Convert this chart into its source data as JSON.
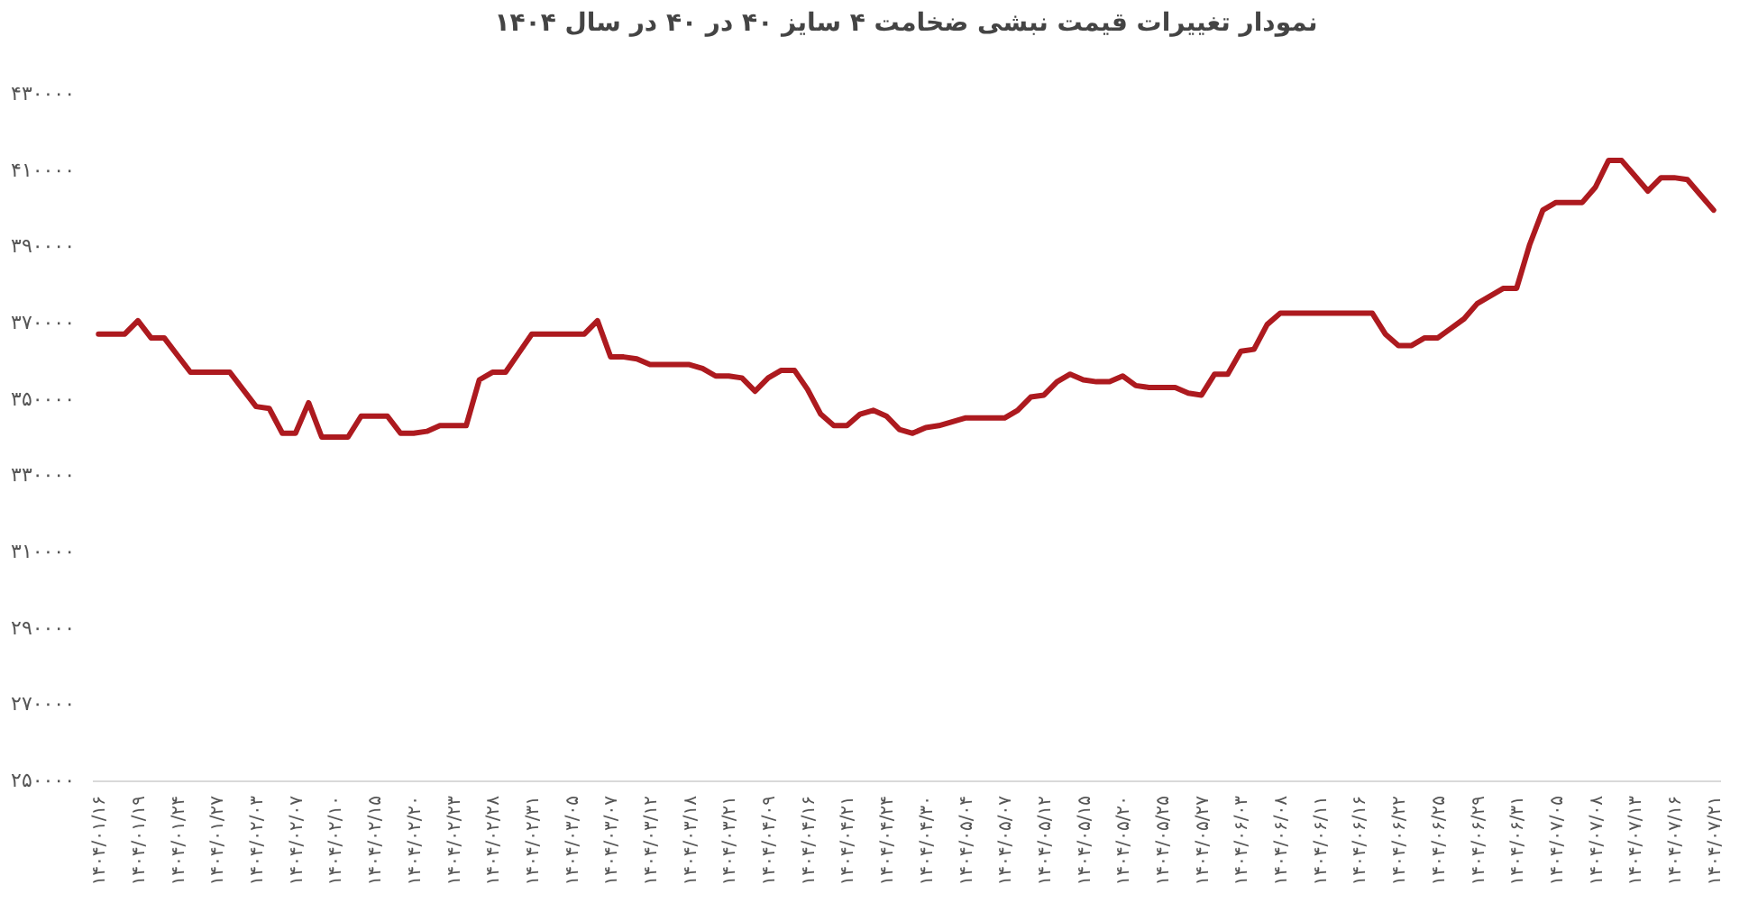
{
  "chart_data": {
    "type": "line",
    "title": "نمودار تغییرات قیمت نبشی ضخامت ۴ سایز ۴۰ در ۴۰ در سال ۱۴۰۴",
    "categories": [
      "۱۴۰۴/۰۱/۱۶",
      null,
      null,
      "۱۴۰۴/۰۱/۱۹",
      null,
      null,
      "۱۴۰۴/۰۱/۲۴",
      null,
      null,
      "۱۴۰۴/۰۱/۲۷",
      null,
      null,
      "۱۴۰۴/۰۲/۰۳",
      null,
      null,
      "۱۴۰۴/۰۲/۰۷",
      null,
      null,
      "۱۴۰۴/۰۲/۱۰",
      null,
      null,
      "۱۴۰۴/۰۲/۱۵",
      null,
      null,
      "۱۴۰۴/۰۲/۲۰",
      null,
      null,
      "۱۴۰۴/۰۲/۲۳",
      null,
      null,
      "۱۴۰۴/۰۲/۲۸",
      null,
      null,
      "۱۴۰۴/۰۲/۳۱",
      null,
      null,
      "۱۴۰۴/۰۳/۰۵",
      null,
      null,
      "۱۴۰۴/۰۳/۰۷",
      null,
      null,
      "۱۴۰۴/۰۳/۱۲",
      null,
      null,
      "۱۴۰۴/۰۳/۱۸",
      null,
      null,
      "۱۴۰۴/۰۳/۲۱",
      null,
      null,
      "۱۴۰۴/۰۴/۰۹",
      null,
      null,
      "۱۴۰۴/۰۴/۱۶",
      null,
      null,
      "۱۴۰۴/۰۴/۲۱",
      null,
      null,
      "۱۴۰۴/۰۴/۲۴",
      null,
      null,
      "۱۴۰۴/۰۴/۳۰",
      null,
      null,
      "۱۴۰۴/۰۵/۰۴",
      null,
      null,
      "۱۴۰۴/۰۵/۰۷",
      null,
      null,
      "۱۴۰۴/۰۵/۱۲",
      null,
      null,
      "۱۴۰۴/۰۵/۱۵",
      null,
      null,
      "۱۴۰۴/۰۵/۲۰",
      null,
      null,
      "۱۴۰۴/۰۵/۲۵",
      null,
      null,
      "۱۴۰۴/۰۵/۲۷",
      null,
      null,
      "۱۴۰۴/۰۶/۰۳",
      null,
      null,
      "۱۴۰۴/۰۶/۰۸",
      null,
      null,
      "۱۴۰۴/۰۶/۱۱",
      null,
      null,
      "۱۴۰۴/۰۶/۱۶",
      null,
      null,
      "۱۴۰۴/۰۶/۲۲",
      null,
      null,
      "۱۴۰۴/۰۶/۲۵",
      null,
      null,
      "۱۴۰۴/۰۶/۲۹",
      null,
      null,
      "۱۴۰۴/۰۶/۳۱",
      null,
      null,
      "۱۴۰۴/۰۷/۰۵",
      null,
      null,
      "۱۴۰۴/۰۷/۰۸",
      null,
      null,
      "۱۴۰۴/۰۷/۱۳",
      null,
      null,
      "۱۴۰۴/۰۷/۱۶",
      null,
      null,
      "۱۴۰۴/۰۷/۲۱"
    ],
    "values": [
      367000,
      367000,
      367000,
      370500,
      366000,
      366000,
      361500,
      357000,
      357000,
      357000,
      357000,
      352500,
      348000,
      347500,
      341000,
      341000,
      349000,
      340000,
      340000,
      340000,
      345500,
      345500,
      345500,
      341000,
      341000,
      341500,
      343000,
      343000,
      343000,
      355000,
      357000,
      357000,
      362000,
      367000,
      367000,
      367000,
      367000,
      367000,
      370500,
      361000,
      361000,
      360500,
      359000,
      359000,
      359000,
      359000,
      358000,
      356000,
      356000,
      355500,
      352000,
      355500,
      357500,
      357500,
      352500,
      346000,
      343000,
      343000,
      346000,
      347000,
      345500,
      342000,
      341000,
      342500,
      343000,
      344000,
      345000,
      345000,
      345000,
      345000,
      347000,
      350500,
      351000,
      354500,
      356500,
      355000,
      354500,
      354500,
      356000,
      353500,
      353000,
      353000,
      353000,
      351500,
      351000,
      356500,
      356500,
      362500,
      363000,
      369500,
      372500,
      372500,
      372500,
      372500,
      372500,
      372500,
      372500,
      372500,
      367000,
      364000,
      364000,
      366000,
      366000,
      368500,
      371000,
      375000,
      377000,
      379000,
      379000,
      390500,
      399500,
      401500,
      401500,
      401500,
      405500,
      412500,
      412500,
      408500,
      404500,
      408000,
      408000,
      407500,
      403500,
      399500
    ],
    "color": "#ad1a1f",
    "ylim": [
      250000,
      430000
    ],
    "yticks": [
      {
        "value": 250000,
        "label": "۲۵۰۰۰۰"
      },
      {
        "value": 270000,
        "label": "۲۷۰۰۰۰"
      },
      {
        "value": 290000,
        "label": "۲۹۰۰۰۰"
      },
      {
        "value": 310000,
        "label": "۳۱۰۰۰۰"
      },
      {
        "value": 330000,
        "label": "۳۳۰۰۰۰"
      },
      {
        "value": 350000,
        "label": "۳۵۰۰۰۰"
      },
      {
        "value": 370000,
        "label": "۳۷۰۰۰۰"
      },
      {
        "value": 390000,
        "label": "۳۹۰۰۰۰"
      },
      {
        "value": 410000,
        "label": "۴۱۰۰۰۰"
      },
      {
        "value": 430000,
        "label": "۴۳۰۰۰۰"
      }
    ],
    "grid": false,
    "legend": false,
    "marker": "none",
    "line_style": "solid"
  }
}
